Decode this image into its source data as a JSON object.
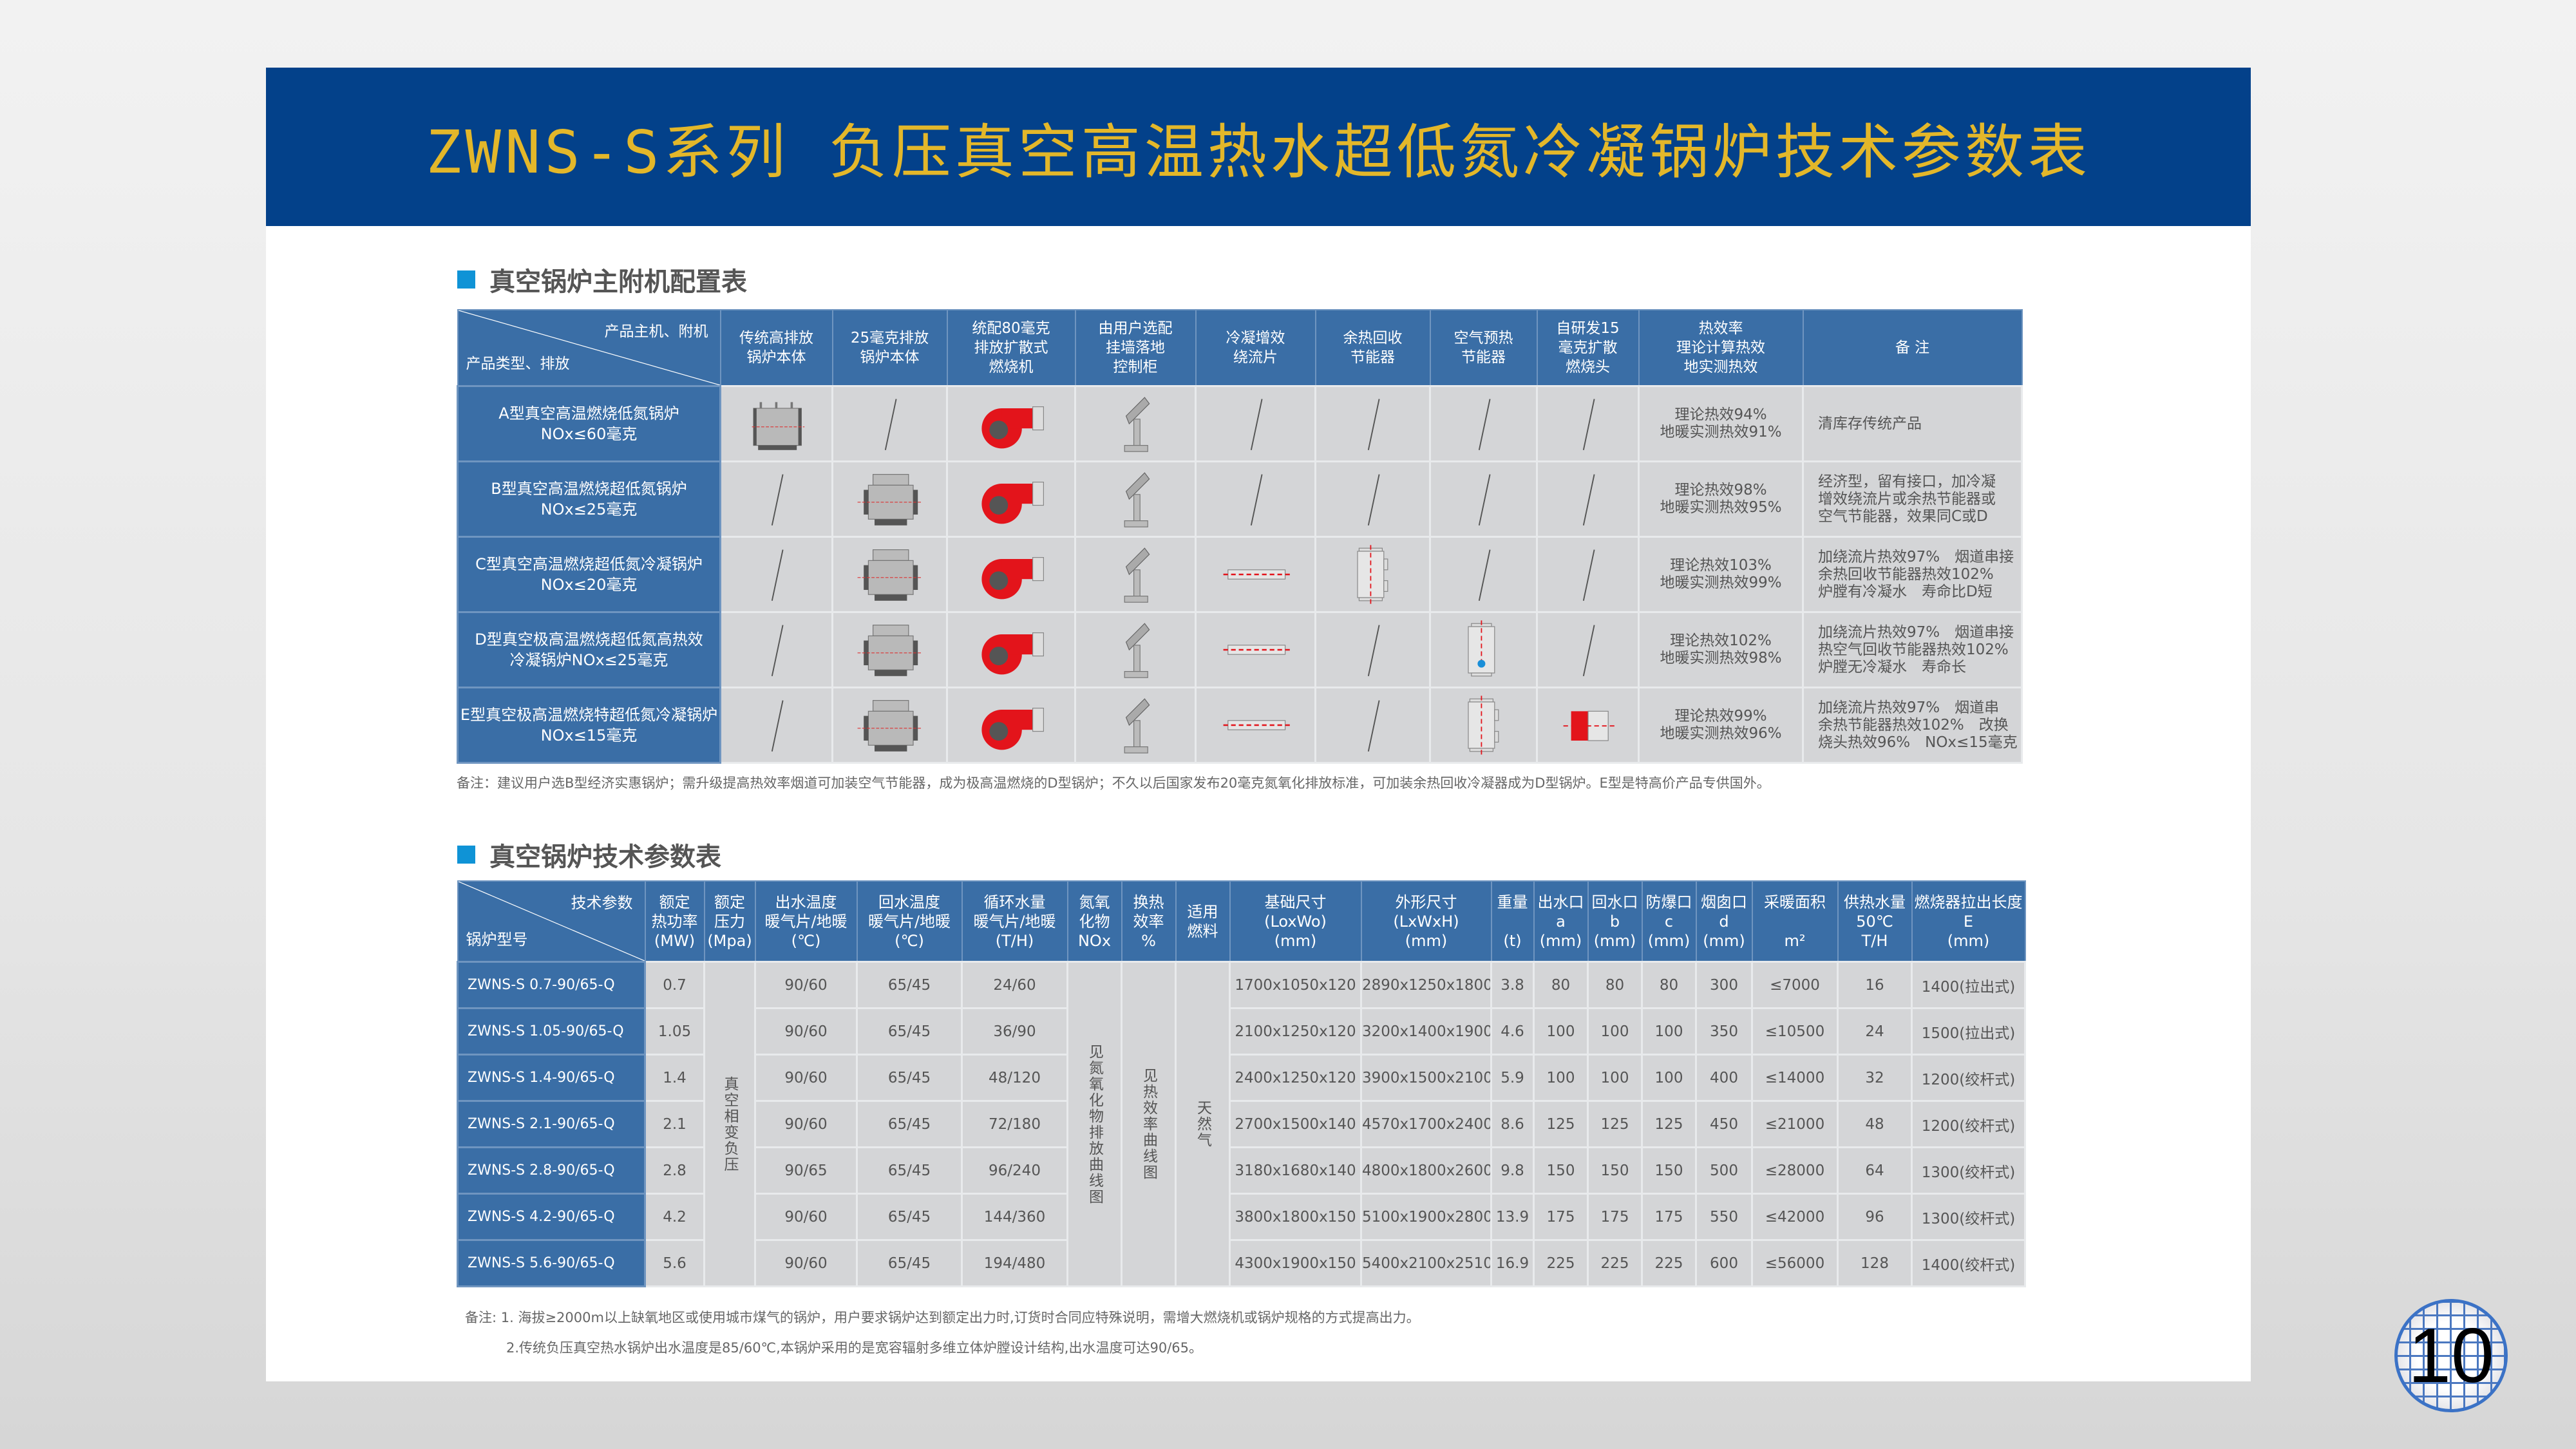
{
  "title": "ZWNS-S系列 负压真空高温热水超低氮冷凝锅炉技术参数表",
  "colors": {
    "banner": "#03418a",
    "title": "#e3b72a",
    "header": "#3a6ea6",
    "accent": "#0f93d6"
  },
  "config_table": {
    "heading": "真空锅炉主附机配置表",
    "corner_top": "产品主机、附机",
    "corner_bottom": "产品类型、排放",
    "columns": [
      "传统高排放\n锅炉本体",
      "25毫克排放\n锅炉本体",
      "统配80毫克\n排放扩散式\n燃烧机",
      "由用户选配\n挂墙落地\n控制柜",
      "冷凝增效\n绕流片",
      "余热回收\n节能器",
      "空气预热\n节能器",
      "自研发15\n毫克扩散\n燃烧头",
      "热效率\n理论计算热效\n地实测热效",
      "备 注"
    ],
    "rows": [
      {
        "type": "A型真空高温燃烧低氮锅炉\nNOx≤60毫克",
        "icons": [
          "boiler-traditional-icon",
          "slash-icon",
          "burner-icon",
          "control-cabinet-icon",
          "slash-icon",
          "slash-icon",
          "slash-icon",
          "slash-icon"
        ],
        "efficiency": "理论热效94%\n地暖实测热效91%",
        "remark": "清库存传统产品"
      },
      {
        "type": "B型真空高温燃烧超低氮锅炉\nNOx≤25毫克",
        "icons": [
          "slash-icon",
          "boiler-body-icon",
          "burner-icon",
          "control-cabinet-icon",
          "slash-icon",
          "slash-icon",
          "slash-icon",
          "slash-icon"
        ],
        "efficiency": "理论热效98%\n地暖实测热效95%",
        "remark": "经济型，留有接口，加冷凝\n增效绕流片或余热节能器或\n空气节能器，效果同C或D"
      },
      {
        "type": "C型真空高温燃烧超低氮冷凝锅炉\nNOx≤20毫克",
        "icons": [
          "slash-icon",
          "boiler-body-icon",
          "burner-icon",
          "control-cabinet-icon",
          "fin-tube-icon",
          "economizer-icon",
          "slash-icon",
          "slash-icon"
        ],
        "efficiency": "理论热效103%\n地暖实测热效99%",
        "remark": "加绕流片热效97%　烟道串接\n余热回收节能器热效102%\n炉膛有冷凝水　寿命比D短"
      },
      {
        "type": "D型真空极高温燃烧超低氮高热效\n冷凝锅炉NOx≤25毫克",
        "icons": [
          "slash-icon",
          "boiler-body-icon",
          "burner-icon",
          "control-cabinet-icon",
          "fin-tube-icon",
          "slash-icon",
          "air-preheater-icon",
          "slash-icon"
        ],
        "efficiency": "理论热效102%\n地暖实测热效98%",
        "remark": "加绕流片热效97%　烟道串接\n热空气回收节能器热效102%\n炉膛无冷凝水　寿命长"
      },
      {
        "type": "E型真空极高温燃烧特超低氮冷凝锅炉\nNOx≤15毫克",
        "icons": [
          "slash-icon",
          "boiler-body-icon",
          "burner-icon",
          "control-cabinet-icon",
          "fin-tube-icon",
          "slash-icon",
          "economizer-icon",
          "burner-head-icon"
        ],
        "efficiency": "理论热效99%\n地暖实测热效96%",
        "remark": "加绕流片热效97%　烟道串\n余热节能器热效102%　改换\n烧头热效96%　NOx≤15毫克"
      }
    ],
    "note": "备注：建议用户选B型经济实惠锅炉；需升级提高热效率烟道可加装空气节能器，成为极高温燃烧的D型锅炉；不久以后国家发布20毫克氮氧化排放标准，可加装余热回收冷凝器成为D型锅炉。E型是特高价产品专供国外。"
  },
  "param_table": {
    "heading": "真空锅炉技术参数表",
    "corner_top": "技术参数",
    "corner_bottom": "锅炉型号",
    "columns": [
      "额定\n热功率\n(MW)",
      "额定\n压力\n(Mpa)",
      "出水温度\n暖气片/地暖\n(℃)",
      "回水温度\n暖气片/地暖\n(℃)",
      "循环水量\n暖气片/地暖\n(T/H)",
      "氮氧\n化物\nNOx",
      "换热\n效率\n%",
      "适用\n燃料",
      "基础尺寸\n(LoxWo)\n(mm)",
      "外形尺寸\n(LxWxH)\n(mm)",
      "重量\n\n(t)",
      "出水口\na\n(mm)",
      "回水口\nb\n(mm)",
      "防爆口\nc\n(mm)",
      "烟囱口\nd\n(mm)",
      "采暖面积\n\nm²",
      "供热水量\n50℃\nT/H",
      "燃烧器拉出长度\nE\n(mm)"
    ],
    "merged": {
      "pressure": "真空相变负压",
      "nox": "见氮氧化物排放曲线图",
      "efficiency": "见热效率曲线图",
      "fuel": "天然气"
    },
    "rows": [
      {
        "model": "ZWNS-S 0.7-90/65-Q",
        "power": "0.7",
        "out_temp": "90/60",
        "return_temp": "65/45",
        "flow": "24/60",
        "base": "1700x1050x120",
        "outline": "2890x1250x1800",
        "weight": "3.8",
        "a": "80",
        "b": "80",
        "c": "80",
        "d": "300",
        "area": "≤7000",
        "supply": "16",
        "burner": "1400(拉出式)"
      },
      {
        "model": "ZWNS-S 1.05-90/65-Q",
        "power": "1.05",
        "out_temp": "90/60",
        "return_temp": "65/45",
        "flow": "36/90",
        "base": "2100x1250x120",
        "outline": "3200x1400x1900",
        "weight": "4.6",
        "a": "100",
        "b": "100",
        "c": "100",
        "d": "350",
        "area": "≤10500",
        "supply": "24",
        "burner": "1500(拉出式)"
      },
      {
        "model": "ZWNS-S 1.4-90/65-Q",
        "power": "1.4",
        "out_temp": "90/60",
        "return_temp": "65/45",
        "flow": "48/120",
        "base": "2400x1250x120",
        "outline": "3900x1500x2100",
        "weight": "5.9",
        "a": "100",
        "b": "100",
        "c": "100",
        "d": "400",
        "area": "≤14000",
        "supply": "32",
        "burner": "1200(绞杆式)"
      },
      {
        "model": "ZWNS-S 2.1-90/65-Q",
        "power": "2.1",
        "out_temp": "90/60",
        "return_temp": "65/45",
        "flow": "72/180",
        "base": "2700x1500x140",
        "outline": "4570x1700x2400",
        "weight": "8.6",
        "a": "125",
        "b": "125",
        "c": "125",
        "d": "450",
        "area": "≤21000",
        "supply": "48",
        "burner": "1200(绞杆式)"
      },
      {
        "model": "ZWNS-S 2.8-90/65-Q",
        "power": "2.8",
        "out_temp": "90/65",
        "return_temp": "65/45",
        "flow": "96/240",
        "base": "3180x1680x140",
        "outline": "4800x1800x2600",
        "weight": "9.8",
        "a": "150",
        "b": "150",
        "c": "150",
        "d": "500",
        "area": "≤28000",
        "supply": "64",
        "burner": "1300(绞杆式)"
      },
      {
        "model": "ZWNS-S 4.2-90/65-Q",
        "power": "4.2",
        "out_temp": "90/60",
        "return_temp": "65/45",
        "flow": "144/360",
        "base": "3800x1800x150",
        "outline": "5100x1900x2800",
        "weight": "13.9",
        "a": "175",
        "b": "175",
        "c": "175",
        "d": "550",
        "area": "≤42000",
        "supply": "96",
        "burner": "1300(绞杆式)"
      },
      {
        "model": "ZWNS-S 5.6-90/65-Q",
        "power": "5.6",
        "out_temp": "90/60",
        "return_temp": "65/45",
        "flow": "194/480",
        "base": "4300x1900x150",
        "outline": "5400x2100x2510",
        "weight": "16.9",
        "a": "225",
        "b": "225",
        "c": "225",
        "d": "600",
        "area": "≤56000",
        "supply": "128",
        "burner": "1400(绞杆式)"
      }
    ],
    "notes": [
      "备注: 1. 海拔≥2000m以上缺氧地区或使用城市煤气的锅炉，用户要求锅炉达到额定出力时,订货时合同应特殊说明，需增大燃烧机或锅炉规格的方式提高出力。",
      "2.传统负压真空热水锅炉出水温度是85/60℃,本锅炉采用的是宽容辐射多维立体炉膛设计结构,出水温度可达90/65。"
    ]
  },
  "page_number": "10"
}
